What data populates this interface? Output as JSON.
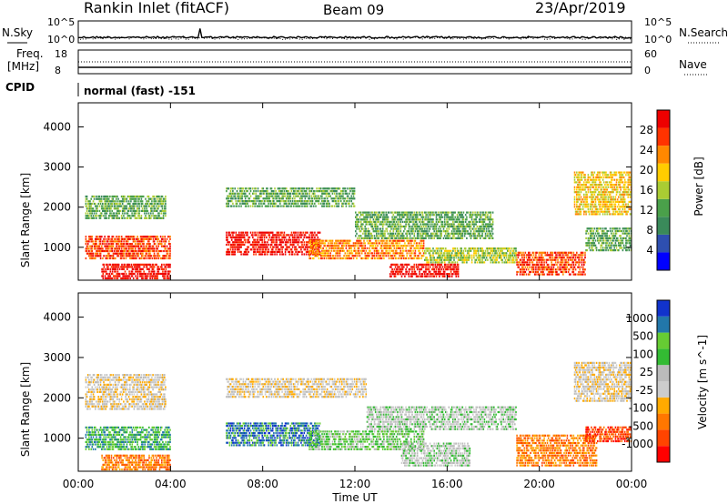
{
  "header": {
    "station": "Rankin Inlet (fitACF)",
    "beam": "Beam 09",
    "date": "23/Apr/2019"
  },
  "top_panels": {
    "nsky_label": "N.Sky",
    "nsky_ticks": [
      "10^5",
      "10^0"
    ],
    "nsearch_label": "N.Search",
    "nsearch_ticks": [
      "10^5",
      "10^0"
    ],
    "freq_label": "Freq.",
    "freq_unit": "[MHz]",
    "freq_ticks": [
      "18",
      "8"
    ],
    "nave_label": "Nave",
    "nave_ticks": [
      "60",
      "0"
    ],
    "cpid_label": "CPID",
    "cpid_text": "normal (fast) -151"
  },
  "x_axis": {
    "label": "Time UT",
    "ticks": [
      "00:00",
      "04:00",
      "08:00",
      "12:00",
      "16:00",
      "20:00",
      "00:00"
    ]
  },
  "colors": {
    "power": [
      "#0000ff",
      "#2e4fb0",
      "#3a8a5a",
      "#4aa04a",
      "#aacc33",
      "#ffcc00",
      "#ff8800",
      "#ff3300",
      "#ee0000"
    ],
    "velocity": [
      "#ff0000",
      "#ff4400",
      "#ff7700",
      "#ffaa00",
      "#cccccc",
      "#bbbbbb",
      "#33bb33",
      "#66cc33",
      "#2277aa",
      "#1133cc"
    ]
  },
  "chart_data": [
    {
      "type": "heatmap",
      "title": "Power",
      "xlabel": "Time UT",
      "ylabel": "Slant Range [km]",
      "colorbar_label": "Power [dB]",
      "colorbar_ticks": [
        "28",
        "24",
        "20",
        "16",
        "12",
        "8",
        "4"
      ],
      "ylim": [
        180,
        4600
      ],
      "yticks": [
        "1000",
        "2000",
        "3000",
        "4000"
      ],
      "bands": [
        {
          "t0": 0.3,
          "t1": 3.8,
          "r0": 1700,
          "r1": 2300,
          "level": 3
        },
        {
          "t0": 0.3,
          "t1": 4.0,
          "r0": 700,
          "r1": 1300,
          "level": 7
        },
        {
          "t0": 1.0,
          "t1": 4.0,
          "r0": 200,
          "r1": 600,
          "level": 8
        },
        {
          "t0": 6.4,
          "t1": 12.0,
          "r0": 2000,
          "r1": 2500,
          "level": 3
        },
        {
          "t0": 6.4,
          "t1": 10.5,
          "r0": 800,
          "r1": 1400,
          "level": 8
        },
        {
          "t0": 10.0,
          "t1": 15.0,
          "r0": 700,
          "r1": 1200,
          "level": 6
        },
        {
          "t0": 12.0,
          "t1": 18.0,
          "r0": 1200,
          "r1": 1900,
          "level": 3
        },
        {
          "t0": 13.5,
          "t1": 16.5,
          "r0": 250,
          "r1": 600,
          "level": 8
        },
        {
          "t0": 15.0,
          "t1": 19.0,
          "r0": 600,
          "r1": 1000,
          "level": 4
        },
        {
          "t0": 19.0,
          "t1": 22.0,
          "r0": 300,
          "r1": 900,
          "level": 7
        },
        {
          "t0": 21.5,
          "t1": 24.0,
          "r0": 1800,
          "r1": 2900,
          "level": 5
        },
        {
          "t0": 22.0,
          "t1": 24.0,
          "r0": 900,
          "r1": 1500,
          "level": 3
        }
      ]
    },
    {
      "type": "heatmap",
      "title": "Velocity",
      "xlabel": "Time UT",
      "ylabel": "Slant Range [km]",
      "colorbar_label": "Velocity [m s^-1]",
      "colorbar_ticks": [
        "1000",
        "500",
        "100",
        "25",
        "-25",
        "-100",
        "-500",
        "-1000"
      ],
      "ylim": [
        180,
        4600
      ],
      "yticks": [
        "1000",
        "2000",
        "3000",
        "4000"
      ],
      "bands": [
        {
          "t0": 0.3,
          "t1": 3.8,
          "r0": 1700,
          "r1": 2600,
          "level": 4
        },
        {
          "t0": 0.3,
          "t1": 4.0,
          "r0": 700,
          "r1": 1300,
          "level": 7
        },
        {
          "t0": 1.0,
          "t1": 4.0,
          "r0": 200,
          "r1": 600,
          "level": 2
        },
        {
          "t0": 6.4,
          "t1": 12.5,
          "r0": 2000,
          "r1": 2500,
          "level": 4
        },
        {
          "t0": 6.4,
          "t1": 10.5,
          "r0": 800,
          "r1": 1400,
          "level": 8
        },
        {
          "t0": 10.0,
          "t1": 15.0,
          "r0": 700,
          "r1": 1200,
          "level": 6
        },
        {
          "t0": 12.5,
          "t1": 19.0,
          "r0": 1200,
          "r1": 1800,
          "level": 5
        },
        {
          "t0": 14.0,
          "t1": 17.0,
          "r0": 300,
          "r1": 900,
          "level": 5
        },
        {
          "t0": 19.0,
          "t1": 22.5,
          "r0": 300,
          "r1": 1100,
          "level": 2
        },
        {
          "t0": 21.5,
          "t1": 24.0,
          "r0": 1900,
          "r1": 2900,
          "level": 4
        },
        {
          "t0": 22.0,
          "t1": 24.0,
          "r0": 900,
          "r1": 1300,
          "level": 1
        }
      ]
    }
  ]
}
